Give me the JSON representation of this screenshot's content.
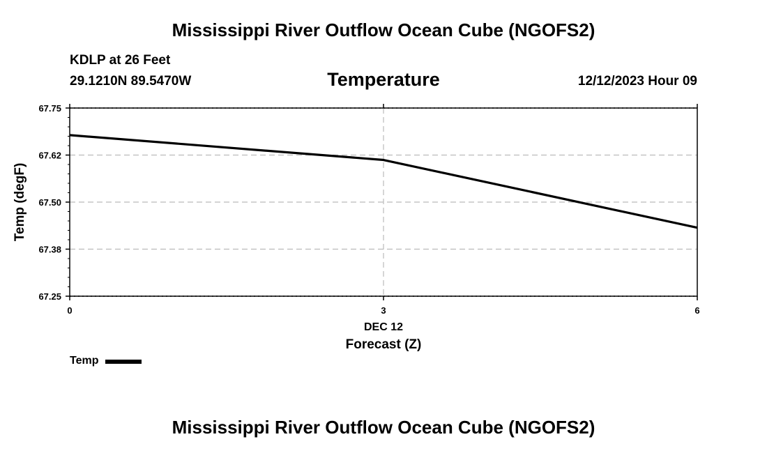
{
  "header": {
    "title": "Mississippi River Outflow Ocean Cube (NGOFS2)",
    "station": "KDLP at 26 Feet",
    "coordinates": "29.1210N  89.5470W",
    "parameter": "Temperature",
    "datetime": "12/12/2023 Hour 09"
  },
  "footer": {
    "title": "Mississippi River Outflow Ocean Cube (NGOFS2)"
  },
  "legend": {
    "label": "Temp"
  },
  "chart_data": {
    "type": "line",
    "title": "Temperature",
    "xlabel": "Forecast (Z)",
    "ylabel": "Temp (degF)",
    "xlim": [
      0,
      6
    ],
    "ylim": [
      67.25,
      67.75
    ],
    "x_ticks": [
      0,
      3,
      6
    ],
    "x_tick_labels": [
      "0",
      "3",
      "6"
    ],
    "x_date_label": "DEC 12",
    "y_ticks": [
      67.25,
      67.375,
      67.5,
      67.625,
      67.75
    ],
    "y_tick_labels": [
      "67.25",
      "67.38",
      "67.50",
      "67.62",
      "67.75"
    ],
    "grid": true,
    "series": [
      {
        "name": "Temp",
        "color": "#000000",
        "x": [
          0,
          3,
          6
        ],
        "values": [
          67.678,
          67.612,
          67.432
        ]
      }
    ]
  }
}
